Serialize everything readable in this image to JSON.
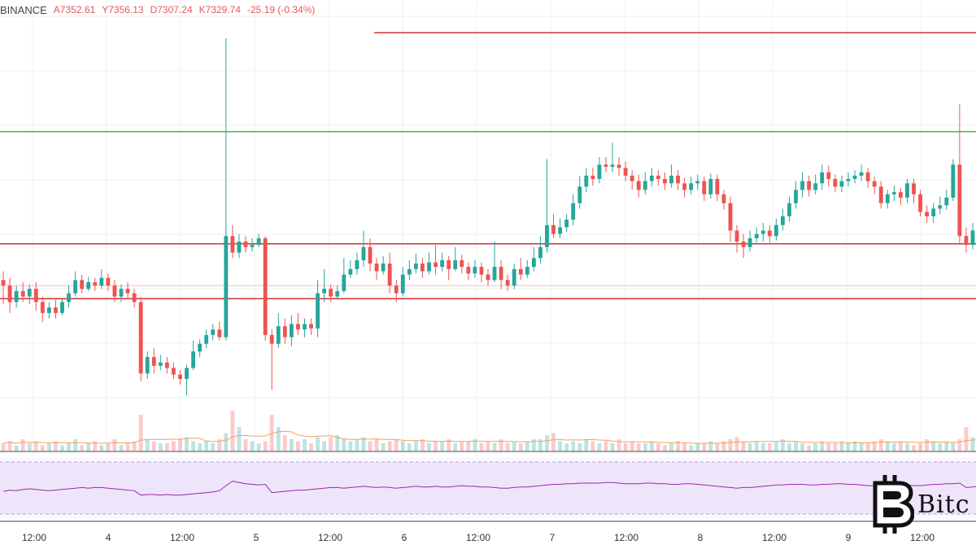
{
  "header": {
    "symbol": "BINANCE",
    "open": "A7352.61",
    "high": "Y7356.13",
    "low": "D7307.24",
    "close": "K7329.74",
    "change": "-25.19 (-0.34%)"
  },
  "watermark": {
    "text": "Bitc"
  },
  "colors": {
    "up": "#26a69a",
    "down": "#ef5350",
    "resistance": "#d32f2f",
    "support_green": "#4caf50",
    "grid": "#eef0f3",
    "rsi_band": "#e9ddf8",
    "rsi_line": "#9c27b0",
    "vol_ma": "#f4a261"
  },
  "chart_data": {
    "type": "candlestick",
    "price_range": [
      7050,
      7420
    ],
    "x_tick_labels": [
      "12:00",
      "4",
      "12:00",
      "5",
      "12:00",
      "6",
      "12:00",
      "7",
      "12:00",
      "8",
      "12:00",
      "9",
      "12:00"
    ],
    "horizontal_lines": [
      {
        "price": 7405,
        "color": "red"
      },
      {
        "price": 7315,
        "color": "green"
      },
      {
        "price": 7213,
        "color": "red"
      },
      {
        "price": 7175,
        "color": "red",
        "faint": true
      },
      {
        "price": 7163,
        "color": "red"
      }
    ],
    "candles": [
      [
        7180,
        7175,
        7188,
        7158
      ],
      [
        7175,
        7160,
        7182,
        7150
      ],
      [
        7160,
        7170,
        7175,
        7155
      ],
      [
        7170,
        7165,
        7178,
        7160
      ],
      [
        7165,
        7172,
        7176,
        7158
      ],
      [
        7172,
        7160,
        7178,
        7152
      ],
      [
        7160,
        7150,
        7165,
        7142
      ],
      [
        7150,
        7155,
        7160,
        7145
      ],
      [
        7155,
        7150,
        7162,
        7145
      ],
      [
        7150,
        7160,
        7163,
        7148
      ],
      [
        7160,
        7168,
        7175,
        7155
      ],
      [
        7168,
        7180,
        7188,
        7165
      ],
      [
        7180,
        7172,
        7185,
        7168
      ],
      [
        7172,
        7178,
        7183,
        7170
      ],
      [
        7178,
        7175,
        7182,
        7170
      ],
      [
        7175,
        7182,
        7190,
        7172
      ],
      [
        7182,
        7175,
        7186,
        7170
      ],
      [
        7175,
        7165,
        7180,
        7160
      ],
      [
        7165,
        7172,
        7176,
        7160
      ],
      [
        7172,
        7168,
        7178,
        7163
      ],
      [
        7168,
        7160,
        7172,
        7155
      ],
      [
        7160,
        7095,
        7165,
        7088
      ],
      [
        7095,
        7110,
        7115,
        7090
      ],
      [
        7110,
        7102,
        7118,
        7095
      ],
      [
        7102,
        7105,
        7112,
        7098
      ],
      [
        7105,
        7100,
        7110,
        7095
      ],
      [
        7100,
        7094,
        7105,
        7090
      ],
      [
        7094,
        7090,
        7098,
        7085
      ],
      [
        7090,
        7100,
        7103,
        7075
      ],
      [
        7100,
        7115,
        7125,
        7098
      ],
      [
        7115,
        7122,
        7126,
        7110
      ],
      [
        7122,
        7130,
        7135,
        7118
      ],
      [
        7130,
        7135,
        7140,
        7125
      ],
      [
        7135,
        7128,
        7142,
        7125
      ],
      [
        7128,
        7220,
        7400,
        7125
      ],
      [
        7220,
        7205,
        7230,
        7200
      ],
      [
        7205,
        7215,
        7222,
        7200
      ],
      [
        7215,
        7210,
        7220,
        7205
      ],
      [
        7210,
        7212,
        7218,
        7206
      ],
      [
        7212,
        7218,
        7222,
        7210
      ],
      [
        7218,
        7130,
        7220,
        7125
      ],
      [
        7130,
        7122,
        7135,
        7080
      ],
      [
        7122,
        7138,
        7150,
        7118
      ],
      [
        7138,
        7128,
        7145,
        7122
      ],
      [
        7128,
        7140,
        7148,
        7120
      ],
      [
        7140,
        7135,
        7150,
        7130
      ],
      [
        7135,
        7140,
        7145,
        7128
      ],
      [
        7140,
        7136,
        7145,
        7130
      ],
      [
        7136,
        7168,
        7180,
        7128
      ],
      [
        7168,
        7172,
        7190,
        7160
      ],
      [
        7172,
        7165,
        7176,
        7160
      ],
      [
        7165,
        7170,
        7175,
        7162
      ],
      [
        7170,
        7185,
        7200,
        7168
      ],
      [
        7185,
        7190,
        7198,
        7182
      ],
      [
        7190,
        7198,
        7205,
        7185
      ],
      [
        7198,
        7210,
        7225,
        7192
      ],
      [
        7210,
        7195,
        7218,
        7188
      ],
      [
        7195,
        7188,
        7200,
        7180
      ],
      [
        7188,
        7195,
        7202,
        7185
      ],
      [
        7195,
        7175,
        7205,
        7168
      ],
      [
        7175,
        7168,
        7180,
        7160
      ],
      [
        7168,
        7185,
        7192,
        7165
      ],
      [
        7185,
        7190,
        7198,
        7180
      ],
      [
        7190,
        7195,
        7204,
        7186
      ],
      [
        7195,
        7188,
        7200,
        7182
      ],
      [
        7188,
        7196,
        7205,
        7185
      ],
      [
        7196,
        7192,
        7212,
        7185
      ],
      [
        7192,
        7198,
        7205,
        7188
      ],
      [
        7198,
        7190,
        7202,
        7180
      ],
      [
        7190,
        7198,
        7210,
        7188
      ],
      [
        7198,
        7192,
        7203,
        7186
      ],
      [
        7192,
        7186,
        7196,
        7180
      ],
      [
        7186,
        7192,
        7198,
        7182
      ],
      [
        7192,
        7185,
        7196,
        7178
      ],
      [
        7185,
        7180,
        7190,
        7175
      ],
      [
        7180,
        7192,
        7215,
        7178
      ],
      [
        7192,
        7180,
        7198,
        7172
      ],
      [
        7180,
        7175,
        7185,
        7170
      ],
      [
        7175,
        7190,
        7195,
        7172
      ],
      [
        7190,
        7185,
        7200,
        7180
      ],
      [
        7185,
        7192,
        7198,
        7182
      ],
      [
        7192,
        7200,
        7210,
        7188
      ],
      [
        7200,
        7210,
        7220,
        7195
      ],
      [
        7210,
        7230,
        7290,
        7205
      ],
      [
        7230,
        7222,
        7240,
        7218
      ],
      [
        7222,
        7228,
        7236,
        7218
      ],
      [
        7228,
        7235,
        7240,
        7224
      ],
      [
        7235,
        7250,
        7258,
        7230
      ],
      [
        7250,
        7265,
        7275,
        7245
      ],
      [
        7265,
        7275,
        7282,
        7260
      ],
      [
        7275,
        7272,
        7282,
        7266
      ],
      [
        7272,
        7285,
        7292,
        7268
      ],
      [
        7285,
        7283,
        7292,
        7278
      ],
      [
        7283,
        7285,
        7305,
        7278
      ],
      [
        7285,
        7282,
        7292,
        7275
      ],
      [
        7282,
        7275,
        7288,
        7270
      ],
      [
        7275,
        7270,
        7280,
        7262
      ],
      [
        7270,
        7262,
        7276,
        7255
      ],
      [
        7262,
        7270,
        7278,
        7258
      ],
      [
        7270,
        7275,
        7282,
        7265
      ],
      [
        7275,
        7272,
        7280,
        7266
      ],
      [
        7272,
        7268,
        7278,
        7262
      ],
      [
        7268,
        7275,
        7285,
        7264
      ],
      [
        7275,
        7268,
        7280,
        7262
      ],
      [
        7268,
        7262,
        7273,
        7255
      ],
      [
        7262,
        7268,
        7274,
        7258
      ],
      [
        7268,
        7270,
        7276,
        7262
      ],
      [
        7270,
        7258,
        7274,
        7252
      ],
      [
        7258,
        7272,
        7277,
        7254
      ],
      [
        7272,
        7258,
        7276,
        7252
      ],
      [
        7258,
        7250,
        7262,
        7244
      ],
      [
        7250,
        7225,
        7256,
        7215
      ],
      [
        7225,
        7215,
        7230,
        7205
      ],
      [
        7215,
        7210,
        7222,
        7200
      ],
      [
        7210,
        7218,
        7225,
        7206
      ],
      [
        7218,
        7222,
        7228,
        7214
      ],
      [
        7222,
        7225,
        7232,
        7215
      ],
      [
        7225,
        7220,
        7230,
        7214
      ],
      [
        7220,
        7230,
        7236,
        7216
      ],
      [
        7230,
        7238,
        7245,
        7225
      ],
      [
        7238,
        7250,
        7256,
        7233
      ],
      [
        7250,
        7262,
        7270,
        7245
      ],
      [
        7262,
        7270,
        7278,
        7255
      ],
      [
        7270,
        7262,
        7275,
        7256
      ],
      [
        7262,
        7268,
        7276,
        7258
      ],
      [
        7268,
        7278,
        7285,
        7262
      ],
      [
        7278,
        7272,
        7284,
        7265
      ],
      [
        7272,
        7265,
        7276,
        7260
      ],
      [
        7265,
        7270,
        7275,
        7260
      ],
      [
        7270,
        7272,
        7278,
        7265
      ],
      [
        7272,
        7275,
        7280,
        7268
      ],
      [
        7275,
        7278,
        7285,
        7270
      ],
      [
        7278,
        7270,
        7282,
        7264
      ],
      [
        7270,
        7265,
        7274,
        7258
      ],
      [
        7265,
        7250,
        7270,
        7245
      ],
      [
        7250,
        7258,
        7262,
        7245
      ],
      [
        7258,
        7260,
        7266,
        7252
      ],
      [
        7260,
        7255,
        7264,
        7248
      ],
      [
        7255,
        7268,
        7272,
        7250
      ],
      [
        7268,
        7258,
        7272,
        7250
      ],
      [
        7258,
        7242,
        7262,
        7238
      ],
      [
        7242,
        7238,
        7248,
        7232
      ],
      [
        7238,
        7245,
        7250,
        7232
      ],
      [
        7245,
        7248,
        7256,
        7240
      ],
      [
        7248,
        7255,
        7262,
        7244
      ],
      [
        7255,
        7285,
        7290,
        7252
      ],
      [
        7285,
        7220,
        7340,
        7212
      ],
      [
        7220,
        7212,
        7228,
        7205
      ],
      [
        7212,
        7225,
        7232,
        7208
      ]
    ],
    "volume_profile": [
      4,
      5,
      3,
      6,
      4,
      5,
      3,
      4,
      5,
      3,
      4,
      6,
      3,
      4,
      5,
      3,
      4,
      6,
      3,
      4,
      5,
      18,
      6,
      5,
      4,
      4,
      5,
      6,
      7,
      5,
      4,
      5,
      4,
      6,
      9,
      20,
      12,
      6,
      5,
      4,
      5,
      18,
      12,
      8,
      6,
      5,
      6,
      4,
      7,
      5,
      7,
      8,
      6,
      5,
      6,
      7,
      5,
      6,
      4,
      5,
      6,
      5,
      4,
      5,
      6,
      4,
      5,
      5,
      6,
      4,
      5,
      5,
      6,
      4,
      5,
      4,
      6,
      4,
      5,
      4,
      5,
      6,
      6,
      8,
      9,
      5,
      4,
      5,
      4,
      6,
      5,
      4,
      5,
      4,
      6,
      4,
      5,
      4,
      4,
      5,
      4,
      3,
      4,
      5,
      4,
      3,
      4,
      4,
      5,
      4,
      5,
      6,
      7,
      5,
      4,
      5,
      4,
      4,
      5,
      6,
      4,
      5,
      4,
      3,
      4,
      5,
      4,
      4,
      5,
      4,
      5,
      4,
      4,
      5,
      6,
      5,
      4,
      5,
      4,
      3,
      4,
      6,
      5,
      4,
      5,
      4,
      6,
      12,
      7,
      5
    ],
    "rsi_line_profile": [
      46,
      48,
      47,
      49,
      50,
      49,
      48,
      47,
      48,
      49,
      50,
      51,
      52,
      51,
      52,
      52,
      51,
      50,
      49,
      48,
      47,
      40,
      41,
      41,
      40,
      41,
      40,
      40,
      41,
      42,
      43,
      44,
      45,
      47,
      55,
      62,
      60,
      58,
      57,
      56,
      57,
      44,
      45,
      46,
      47,
      48,
      48,
      49,
      50,
      51,
      52,
      52,
      51,
      52,
      53,
      54,
      53,
      52,
      53,
      52,
      51,
      52,
      53,
      54,
      53,
      53,
      54,
      53,
      53,
      54,
      55,
      54,
      54,
      53,
      53,
      52,
      51,
      51,
      52,
      53,
      53,
      54,
      55,
      56,
      57,
      57,
      58,
      58,
      59,
      59,
      59,
      59,
      60,
      60,
      59,
      58,
      58,
      58,
      59,
      59,
      58,
      58,
      57,
      57,
      58,
      58,
      57,
      56,
      55,
      54,
      53,
      52,
      51,
      52,
      52,
      53,
      54,
      55,
      56,
      56,
      57,
      57,
      57,
      56,
      56,
      57,
      57,
      58,
      58,
      57,
      57,
      56,
      55,
      55,
      56,
      57,
      57,
      58,
      56,
      55,
      55,
      56,
      57,
      57,
      58,
      58,
      59,
      52,
      53,
      54
    ]
  }
}
